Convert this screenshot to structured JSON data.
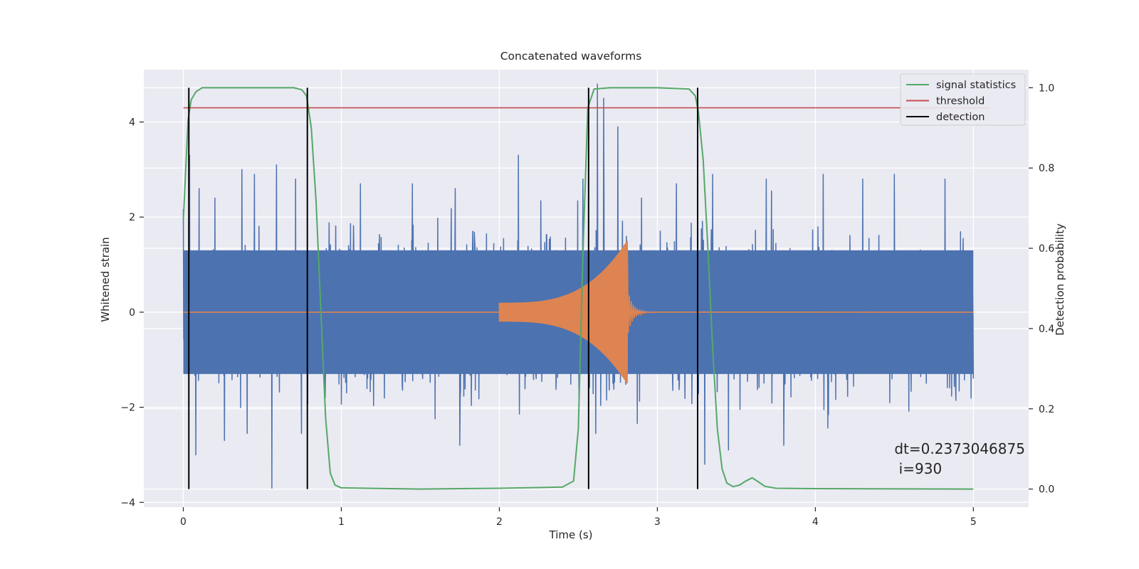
{
  "chart_data": {
    "type": "line",
    "title": "Concatenated waveforms",
    "xlabel": "Time (s)",
    "ylabel": "Whitened strain",
    "y2label": "Detection probability",
    "xlim": [
      -0.25,
      5.35
    ],
    "ylim": [
      -4.1,
      5.1
    ],
    "y2lim": [
      -0.045,
      1.045
    ],
    "xticks": [
      0,
      1,
      2,
      3,
      4,
      5
    ],
    "yticks": [
      -4,
      -2,
      0,
      2,
      4
    ],
    "y2ticks": [
      0.0,
      0.2,
      0.4,
      0.6,
      0.8,
      1.0
    ],
    "xtick_labels": [
      "0",
      "1",
      "2",
      "3",
      "4",
      "5"
    ],
    "ytick_labels": [
      "−4",
      "−2",
      "0",
      "2",
      "4"
    ],
    "y2tick_labels": [
      "0.0",
      "0.2",
      "0.4",
      "0.6",
      "0.8",
      "1.0"
    ],
    "grid": true,
    "legend_position": "top-right",
    "colors": {
      "background": "#eaeaf2",
      "grid": "#ffffff",
      "strain": "#4c72b0",
      "injection": "#dd8452",
      "signal_statistics": "#55a868",
      "threshold": "#c44e52",
      "detection": "#000000"
    },
    "series": [
      {
        "id": "strain",
        "axis": "left",
        "style": "noise",
        "x_range": [
          0,
          5
        ],
        "band": [
          -1.3,
          1.3
        ],
        "peaks": [
          {
            "x": 0.04,
            "y": 3.3
          },
          {
            "x": 0.08,
            "y": -3.0
          },
          {
            "x": 0.1,
            "y": 2.6
          },
          {
            "x": 0.2,
            "y": 2.4
          },
          {
            "x": 0.26,
            "y": -2.7
          },
          {
            "x": 0.37,
            "y": 3.0
          },
          {
            "x": 0.45,
            "y": 2.9
          },
          {
            "x": 0.56,
            "y": -3.7
          },
          {
            "x": 0.59,
            "y": 3.1
          },
          {
            "x": 0.71,
            "y": 2.8
          },
          {
            "x": 1.12,
            "y": 2.7
          },
          {
            "x": 1.45,
            "y": 2.7
          },
          {
            "x": 1.72,
            "y": 2.6
          },
          {
            "x": 1.75,
            "y": -2.8
          },
          {
            "x": 2.12,
            "y": 3.3
          },
          {
            "x": 2.53,
            "y": 2.8
          },
          {
            "x": 2.62,
            "y": 4.8
          },
          {
            "x": 2.66,
            "y": 4.5
          },
          {
            "x": 2.75,
            "y": 3.9
          },
          {
            "x": 2.9,
            "y": 2.4
          },
          {
            "x": 3.12,
            "y": 2.7
          },
          {
            "x": 3.3,
            "y": -3.2
          },
          {
            "x": 3.35,
            "y": 2.9
          },
          {
            "x": 3.45,
            "y": -2.9
          },
          {
            "x": 3.69,
            "y": 2.8
          },
          {
            "x": 3.8,
            "y": -2.8
          },
          {
            "x": 4.05,
            "y": 2.9
          },
          {
            "x": 4.3,
            "y": 2.8
          },
          {
            "x": 4.5,
            "y": 2.9
          },
          {
            "x": 4.82,
            "y": 2.8
          }
        ]
      },
      {
        "id": "injection",
        "axis": "left",
        "style": "chirp",
        "x_range": [
          0,
          5
        ],
        "chirp_start": 2.0,
        "chirp_end": 2.81,
        "amp_start": 0.2,
        "amp_end": 1.5,
        "ringdown_end": 3.0
      },
      {
        "id": "signal_statistics",
        "name": "signal statistics",
        "axis": "right",
        "x": [
          0,
          0.03,
          0.05,
          0.08,
          0.12,
          0.3,
          0.7,
          0.75,
          0.78,
          0.81,
          0.84,
          0.87,
          0.9,
          0.93,
          0.96,
          1.0,
          1.5,
          2.0,
          2.4,
          2.47,
          2.5,
          2.53,
          2.56,
          2.6,
          2.7,
          3.0,
          3.2,
          3.24,
          3.26,
          3.29,
          3.32,
          3.35,
          3.38,
          3.41,
          3.44,
          3.48,
          3.52,
          3.56,
          3.6,
          3.64,
          3.68,
          3.75,
          4.0,
          5.0
        ],
        "values": [
          0.67,
          0.92,
          0.97,
          0.99,
          1.0,
          1.0,
          1.0,
          0.995,
          0.98,
          0.9,
          0.72,
          0.45,
          0.18,
          0.04,
          0.01,
          0.003,
          0.0,
          0.002,
          0.005,
          0.02,
          0.15,
          0.6,
          0.95,
          0.997,
          1.0,
          1.0,
          0.997,
          0.98,
          0.94,
          0.82,
          0.6,
          0.35,
          0.15,
          0.05,
          0.015,
          0.006,
          0.01,
          0.02,
          0.028,
          0.018,
          0.007,
          0.002,
          0.001,
          0.0
        ]
      },
      {
        "id": "threshold",
        "name": "threshold",
        "axis": "right",
        "x": [
          0,
          5.1
        ],
        "values": [
          0.95,
          0.95
        ]
      },
      {
        "id": "detection",
        "name": "detection",
        "axis": "right",
        "style": "vlines",
        "x": [
          0.035,
          0.785,
          2.565,
          3.255
        ],
        "ymin": 0.0,
        "ymax": 1.0
      }
    ],
    "legend": [
      {
        "label": "signal statistics",
        "series": "signal_statistics"
      },
      {
        "label": "threshold",
        "series": "threshold"
      },
      {
        "label": "detection",
        "series": "detection"
      }
    ],
    "annotations": [
      {
        "line1": "dt=0.2373046875",
        "line2": " i=930",
        "x": 4.5,
        "y": 0.1
      }
    ]
  }
}
